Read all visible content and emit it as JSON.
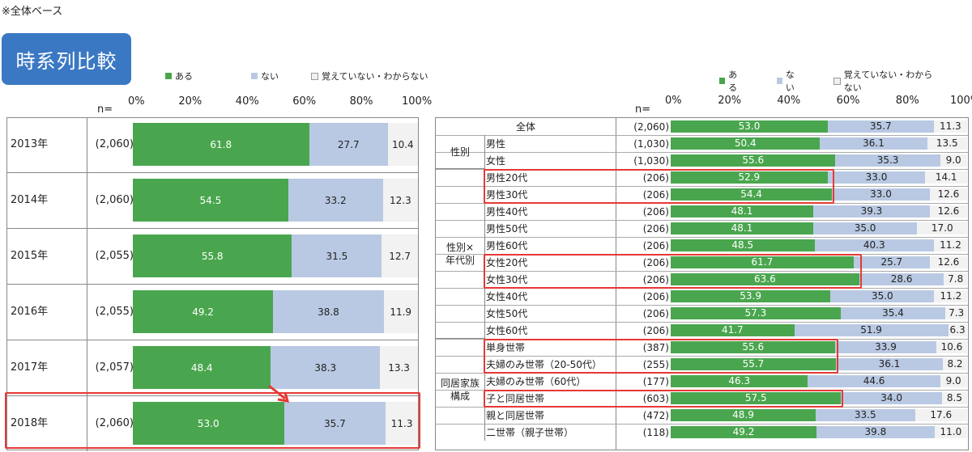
{
  "note": "※全体ベース",
  "badge": "時系列比較",
  "legend": [
    "ある",
    "ない",
    "覚えていない・わからない"
  ],
  "n_label": "n=",
  "axis_ticks": [
    "0%",
    "20%",
    "40%",
    "60%",
    "80%",
    "100%"
  ],
  "colors": {
    "ある": "#4aa64e",
    "ない": "#b9c9e3",
    "覚えていない・わからない": "#f2f2f2",
    "highlight": "#e53935"
  },
  "chart_data": [
    {
      "type": "bar",
      "orientation": "horizontal",
      "stacked": true,
      "categories": [
        "2013年",
        "2014年",
        "2015年",
        "2016年",
        "2017年",
        "2018年"
      ],
      "n": [
        "(2,060)",
        "(2,060)",
        "(2,055)",
        "(2,055)",
        "(2,057)",
        "(2,060)"
      ],
      "series": [
        {
          "name": "ある",
          "values": [
            61.8,
            54.5,
            55.8,
            49.2,
            48.4,
            53.0
          ]
        },
        {
          "name": "ない",
          "values": [
            27.7,
            33.2,
            31.5,
            38.8,
            38.3,
            35.7
          ]
        },
        {
          "name": "覚えていない・わからない",
          "values": [
            10.4,
            12.3,
            12.7,
            11.9,
            13.3,
            11.3
          ]
        }
      ],
      "value_labels": [
        [
          "61.8",
          "27.7",
          "10.4"
        ],
        [
          "54.5",
          "33.2",
          "12.3"
        ],
        [
          "55.8",
          "31.5",
          "12.7"
        ],
        [
          "49.2",
          "38.8",
          "11.9"
        ],
        [
          "48.4",
          "38.3",
          "13.3"
        ],
        [
          "53.0",
          "35.7",
          "11.3"
        ]
      ],
      "xlim": [
        0,
        100
      ]
    },
    {
      "type": "bar",
      "orientation": "horizontal",
      "stacked": true,
      "groups": [
        {
          "label": "",
          "rows": 1
        },
        {
          "label": "性別",
          "rows": 2
        },
        {
          "label": "性別×\n年代別",
          "rows": 10
        },
        {
          "label": "同居家族\n構成",
          "rows": 6
        }
      ],
      "categories": [
        "全体",
        "男性",
        "女性",
        "男性20代",
        "男性30代",
        "男性40代",
        "男性50代",
        "男性60代",
        "女性20代",
        "女性30代",
        "女性40代",
        "女性50代",
        "女性60代",
        "単身世帯",
        "夫婦のみ世帯（20-50代）",
        "夫婦のみ世帯（60代）",
        "子と同居世帯",
        "親と同居世帯",
        "二世帯（親子世帯）"
      ],
      "n": [
        "(2,060)",
        "(1,030)",
        "(1,030)",
        "(206)",
        "(206)",
        "(206)",
        "(206)",
        "(206)",
        "(206)",
        "(206)",
        "(206)",
        "(206)",
        "(206)",
        "(387)",
        "(255)",
        "(177)",
        "(603)",
        "(472)",
        "(118)"
      ],
      "series": [
        {
          "name": "ある",
          "values": [
            53.0,
            50.4,
            55.6,
            52.9,
            54.4,
            48.1,
            48.1,
            48.5,
            61.7,
            63.6,
            53.9,
            57.3,
            41.7,
            55.6,
            55.7,
            46.3,
            57.5,
            48.9,
            49.2
          ]
        },
        {
          "name": "ない",
          "values": [
            35.7,
            36.1,
            35.3,
            33.0,
            33.0,
            39.3,
            35.0,
            40.3,
            25.7,
            28.6,
            35.0,
            35.4,
            51.9,
            33.9,
            36.1,
            44.6,
            34.0,
            33.5,
            39.8
          ]
        },
        {
          "name": "覚えていない・わからない",
          "values": [
            11.3,
            13.5,
            9.0,
            14.1,
            12.6,
            12.6,
            17.0,
            11.2,
            12.6,
            7.8,
            11.2,
            7.3,
            6.3,
            10.6,
            8.2,
            9.0,
            8.5,
            17.6,
            11.0
          ]
        }
      ],
      "value_labels": [
        [
          "53.0",
          "35.7",
          "11.3"
        ],
        [
          "50.4",
          "36.1",
          "13.5"
        ],
        [
          "55.6",
          "35.3",
          "9.0"
        ],
        [
          "52.9",
          "33.0",
          "14.1"
        ],
        [
          "54.4",
          "33.0",
          "12.6"
        ],
        [
          "48.1",
          "39.3",
          "12.6"
        ],
        [
          "48.1",
          "35.0",
          "17.0"
        ],
        [
          "48.5",
          "40.3",
          "11.2"
        ],
        [
          "61.7",
          "25.7",
          "12.6"
        ],
        [
          "63.6",
          "28.6",
          "7.8"
        ],
        [
          "53.9",
          "35.0",
          "11.2"
        ],
        [
          "57.3",
          "35.4",
          "7.3"
        ],
        [
          "41.7",
          "51.9",
          "6.3"
        ],
        [
          "55.6",
          "33.9",
          "10.6"
        ],
        [
          "55.7",
          "36.1",
          "8.2"
        ],
        [
          "46.3",
          "44.6",
          "9.0"
        ],
        [
          "57.5",
          "34.0",
          "8.5"
        ],
        [
          "48.9",
          "33.5",
          "17.6"
        ],
        [
          "49.2",
          "39.8",
          "11.0"
        ]
      ],
      "xlim": [
        0,
        100
      ]
    }
  ]
}
